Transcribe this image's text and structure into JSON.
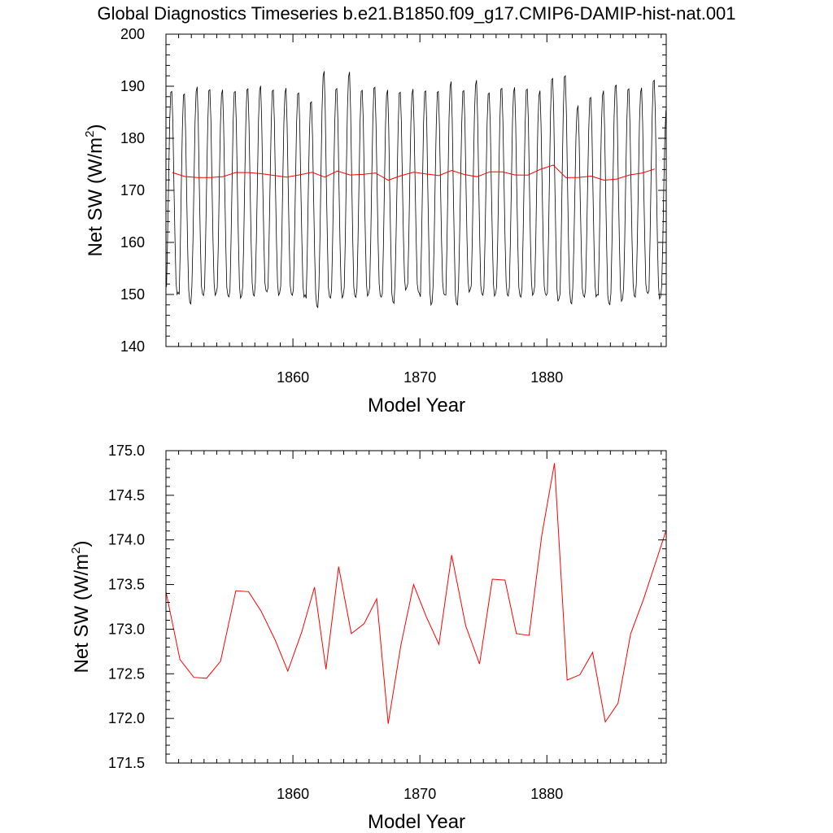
{
  "title": "Global Diagnostics Timeseries b.e21.B1850.f09_g17.CMIP6-DAMIP-hist-nat.001",
  "colors": {
    "monthly": "#000000",
    "annual": "#ff0000",
    "axes": "#000000"
  },
  "chart_data": [
    {
      "type": "line",
      "xlabel": "Model Year",
      "ylabel_main": "Net SW (W/m",
      "ylabel_sup": "2",
      "ylabel_end": ")",
      "xlim": [
        1850,
        1889.4
      ],
      "ylim": [
        140,
        200
      ],
      "xticks": [
        1860,
        1870,
        1880
      ],
      "yticks": [
        140,
        150,
        160,
        170,
        180,
        190,
        200
      ],
      "ytick_labels": [
        "140",
        "150",
        "160",
        "170",
        "180",
        "190",
        "200"
      ],
      "grid": false,
      "series": [
        {
          "kind": "monthly",
          "color": "#000000",
          "start_year": 1850,
          "monthly_climatology": [
            151,
            160,
            172,
            183,
            189,
            189.5,
            183,
            171,
            160,
            151.5,
            149.5,
            149.5
          ],
          "annual_peaks": [
            189.3,
            188.5,
            189.6,
            189.5,
            189.2,
            189.3,
            189.5,
            189.8,
            189.4,
            189.5,
            189.0,
            187.0,
            192.6,
            189.7,
            192.6,
            189.5,
            189.8,
            189.0,
            189.0,
            189.3,
            189.4,
            189.0,
            190.6,
            189.3,
            191.0,
            189.0,
            189.6,
            189.5,
            189.6,
            189.0,
            191.8,
            192.0,
            186.0,
            188.0,
            189.0,
            190.5,
            189.5,
            189.4,
            191.3,
            186.0
          ],
          "annual_troughs": [
            150.3,
            148.5,
            149.8,
            150.0,
            149.7,
            149.6,
            150.0,
            150.5,
            150.0,
            150.0,
            149.8,
            147.8,
            149.3,
            149.5,
            149.6,
            150.0,
            149.8,
            148.3,
            151.0,
            150.4,
            148.3,
            150.2,
            148.0,
            150.6,
            150.0,
            150.0,
            150.0,
            149.5,
            150.0,
            150.0,
            149.0,
            148.5,
            149.5,
            149.7,
            148.2,
            149.0,
            149.8,
            150.2,
            149.3,
            150.0
          ]
        },
        {
          "kind": "annual",
          "color": "#ff0000",
          "x": [
            1850.5,
            1851.5,
            1852.5,
            1853.5,
            1854.5,
            1855.5,
            1856.5,
            1857.5,
            1858.5,
            1859.5,
            1860.5,
            1861.5,
            1862.5,
            1863.5,
            1864.5,
            1865.5,
            1866.5,
            1867.5,
            1868.5,
            1869.5,
            1870.5,
            1871.5,
            1872.5,
            1873.5,
            1874.5,
            1875.5,
            1876.5,
            1877.5,
            1878.5,
            1879.5,
            1880.5,
            1881.5,
            1882.5,
            1883.5,
            1884.5,
            1885.5,
            1886.5,
            1887.5,
            1888.5
          ],
          "y": [
            173.42,
            172.66,
            172.46,
            172.45,
            172.64,
            173.43,
            173.42,
            173.2,
            172.88,
            172.53,
            172.97,
            173.47,
            172.55,
            173.7,
            172.95,
            173.06,
            173.34,
            171.94,
            172.82,
            173.5,
            173.14,
            172.83,
            173.83,
            173.04,
            172.61,
            173.56,
            173.55,
            172.95,
            172.93,
            174.05,
            174.86,
            172.43,
            172.49,
            172.74,
            171.96,
            172.17,
            172.95,
            173.33,
            174.11
          ]
        }
      ]
    },
    {
      "type": "line",
      "xlabel": "Model Year",
      "ylabel_main": "Net SW (W/m",
      "ylabel_sup": "2",
      "ylabel_end": ")",
      "xlim": [
        1850,
        1889.4
      ],
      "ylim": [
        171.5,
        175.0
      ],
      "xticks": [
        1860,
        1870,
        1880
      ],
      "yticks": [
        171.5,
        172.0,
        172.5,
        173.0,
        173.5,
        174.0,
        174.5,
        175.0
      ],
      "ytick_labels": [
        "171.5",
        "172.0",
        "172.5",
        "173.0",
        "173.5",
        "174.0",
        "174.5",
        "175.0"
      ],
      "grid": false,
      "series": [
        {
          "kind": "annual",
          "color": "#ff0000",
          "x": [
            1850,
            1851.1,
            1852.2,
            1853.2,
            1854.3,
            1855.5,
            1856.5,
            1857.5,
            1858.6,
            1859.6,
            1860.7,
            1861.7,
            1862.6,
            1863.6,
            1864.6,
            1865.6,
            1866.6,
            1867.5,
            1868.5,
            1869.5,
            1870.5,
            1871.5,
            1872.5,
            1873.6,
            1874.7,
            1875.7,
            1876.7,
            1877.6,
            1878.6,
            1879.6,
            1880.6,
            1881.6,
            1882.6,
            1883.6,
            1884.6,
            1885.6,
            1886.6,
            1887.6,
            1889.4
          ],
          "y": [
            173.42,
            172.66,
            172.46,
            172.45,
            172.64,
            173.43,
            173.42,
            173.2,
            172.88,
            172.53,
            172.97,
            173.47,
            172.55,
            173.7,
            172.95,
            173.06,
            173.34,
            171.94,
            172.82,
            173.5,
            173.14,
            172.83,
            173.83,
            173.04,
            172.61,
            173.56,
            173.55,
            172.95,
            172.93,
            174.05,
            174.86,
            172.43,
            172.49,
            172.74,
            171.96,
            172.17,
            172.95,
            173.33,
            174.11
          ]
        }
      ]
    }
  ]
}
